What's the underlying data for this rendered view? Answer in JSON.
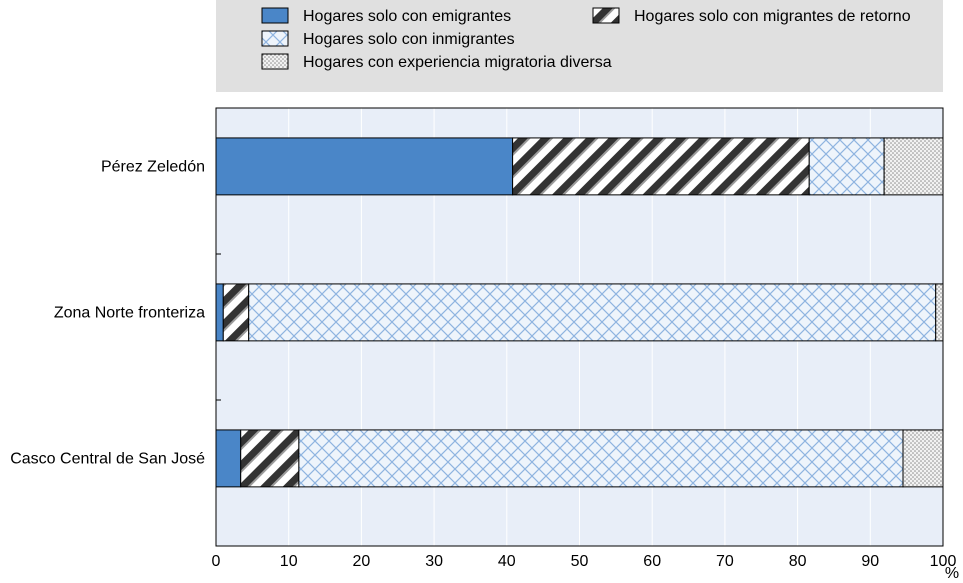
{
  "chart_data": {
    "type": "bar",
    "orientation": "horizontal",
    "stacked": true,
    "categories": [
      "Pérez Zeledón",
      "Zona Norte fronteriza",
      "Casco Central de San José"
    ],
    "series": [
      {
        "name": "Hogares solo con emigrantes",
        "values": [
          40.8,
          1.0,
          3.4
        ],
        "color": "#4a86c8",
        "pattern": "solid"
      },
      {
        "name": "Hogares solo con migrantes de retorno",
        "values": [
          40.8,
          3.5,
          8.0
        ],
        "color": "#333333",
        "pattern": "diagonal"
      },
      {
        "name": "Hogares solo con inmigrantes",
        "values": [
          10.3,
          94.5,
          83.1
        ],
        "color": "#8fb4e0",
        "pattern": "crosshatch"
      },
      {
        "name": "Hogares con experiencia migratoria diversa",
        "values": [
          8.1,
          1.0,
          5.5
        ],
        "color": "#999999",
        "pattern": "dots"
      }
    ],
    "xlim": [
      0,
      100
    ],
    "xticks": [
      "0",
      "10",
      "20",
      "30",
      "40",
      "50",
      "60",
      "70",
      "80",
      "90",
      "100"
    ],
    "xunit": "%",
    "grid": true,
    "legend_position": "top"
  }
}
